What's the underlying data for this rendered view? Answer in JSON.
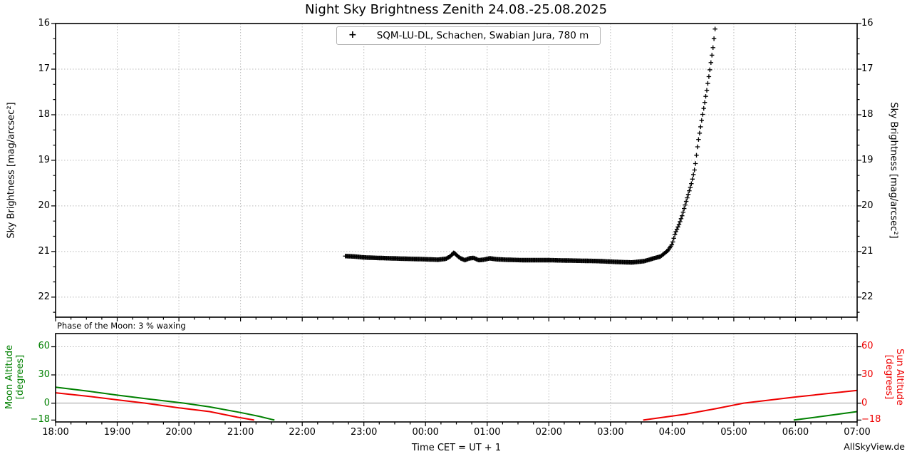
{
  "page": {
    "title": "Night Sky Brightness Zenith 24.08.-25.08.2025",
    "watermark": "AllSkyView.de"
  },
  "colors": {
    "marker": "#000000",
    "moon_green": "#008000",
    "sun_red": "#ee0000",
    "grid_dotted": "#bbbbbb",
    "zero_line": "#c8c8c8",
    "legend_border": "#b4b4b4",
    "axis_box": "#000000"
  },
  "chart_data": [
    {
      "type": "scatter",
      "title": "Night Sky Brightness Zenith 24.08.-25.08.2025",
      "legend": [
        {
          "marker": "+",
          "label": "SQM-LU-DL, Schachen, Swabian Jura, 780 m",
          "color": "#000000"
        }
      ],
      "xlabel": "Time CET = UT + 1",
      "ylabel_left": "Sky Brightness [mag/arcsec²]",
      "ylabel_right": "Sky Brightness [mag/arcsec²]",
      "y_axis_inverted": true,
      "ylim": [
        16,
        22.44
      ],
      "y_tick_values": [
        16,
        17,
        18,
        19,
        20,
        21,
        22
      ],
      "y_tick_labels": [
        "16",
        "17",
        "18",
        "19",
        "20",
        "21",
        "22"
      ],
      "y_minor_step": 0.3333,
      "xlim_hours": [
        0,
        13
      ],
      "x_axis_start_clock": "18:00",
      "x_tick_hours": [
        0,
        1,
        2,
        3,
        4,
        5,
        6,
        7,
        8,
        9,
        10,
        11,
        12,
        13
      ],
      "x_tick_labels": [
        "18:00",
        "19:00",
        "20:00",
        "21:00",
        "22:00",
        "23:00",
        "00:00",
        "01:00",
        "02:00",
        "03:00",
        "04:00",
        "05:00",
        "06:00",
        "07:00"
      ],
      "x_minor_step_hours": 0.25,
      "grid": "dotted",
      "series": [
        {
          "name": "SQM-LU-DL, Schachen, Swabian Jura, 780 m",
          "marker": "+",
          "color": "#000000",
          "sample_step_hours": 0.0167,
          "keypoints_hours_after_1800_vs_mag": [
            [
              4.7,
              21.1
            ],
            [
              4.85,
              21.11
            ],
            [
              5.0,
              21.13
            ],
            [
              5.2,
              21.14
            ],
            [
              5.45,
              21.15
            ],
            [
              5.7,
              21.16
            ],
            [
              6.0,
              21.17
            ],
            [
              6.2,
              21.18
            ],
            [
              6.33,
              21.16
            ],
            [
              6.41,
              21.1
            ],
            [
              6.46,
              21.02
            ],
            [
              6.51,
              21.09
            ],
            [
              6.57,
              21.15
            ],
            [
              6.64,
              21.19
            ],
            [
              6.71,
              21.15
            ],
            [
              6.78,
              21.14
            ],
            [
              6.86,
              21.19
            ],
            [
              6.94,
              21.18
            ],
            [
              7.04,
              21.15
            ],
            [
              7.15,
              21.17
            ],
            [
              7.3,
              21.18
            ],
            [
              7.6,
              21.19
            ],
            [
              8.0,
              21.19
            ],
            [
              8.4,
              21.2
            ],
            [
              8.8,
              21.21
            ],
            [
              9.12,
              21.23
            ],
            [
              9.35,
              21.24
            ],
            [
              9.55,
              21.21
            ],
            [
              9.7,
              21.15
            ],
            [
              9.81,
              21.11
            ],
            [
              9.93,
              20.98
            ],
            [
              10.0,
              20.84
            ],
            [
              10.05,
              20.6
            ],
            [
              10.11,
              20.41
            ],
            [
              10.16,
              20.22
            ],
            [
              10.23,
              19.89
            ],
            [
              10.31,
              19.52
            ],
            [
              10.37,
              19.16
            ],
            [
              10.42,
              18.61
            ],
            [
              10.48,
              18.11
            ],
            [
              10.56,
              17.48
            ],
            [
              10.62,
              16.94
            ],
            [
              10.66,
              16.55
            ],
            [
              10.69,
              16.2
            ],
            [
              10.71,
              15.9
            ]
          ]
        }
      ]
    },
    {
      "type": "line",
      "annotation": "Phase of the Moon: 3 % waxing",
      "ylabel_left_lines": [
        "Moon Altitude",
        "[degrees]"
      ],
      "ylabel_right_lines": [
        "Sun Altitude",
        "[degrees]"
      ],
      "ylim": [
        -20,
        74
      ],
      "y_tick_values": [
        60,
        30,
        0,
        -18
      ],
      "y_tick_labels": [
        "60",
        "30",
        "0",
        "−18"
      ],
      "xlim_hours": [
        0,
        13
      ],
      "x_minor_step_hours": 0.25,
      "zero_line_value": 0,
      "series": [
        {
          "name": "Moon Altitude",
          "color": "#008000",
          "segments_hours_after_1800_vs_deg": [
            [
              [
                0,
                17
              ],
              [
                0.5,
                13
              ],
              [
                1.0,
                8.5
              ],
              [
                1.5,
                4.5
              ],
              [
                2.08,
                0
              ],
              [
                2.5,
                -4
              ],
              [
                3.0,
                -10
              ],
              [
                3.3,
                -14
              ],
              [
                3.55,
                -18
              ]
            ],
            [
              [
                11.97,
                -18
              ],
              [
                12.5,
                -13.5
              ],
              [
                13,
                -9
              ]
            ]
          ]
        },
        {
          "name": "Sun Altitude",
          "color": "#ee0000",
          "segments_hours_after_1800_vs_deg": [
            [
              [
                0,
                11
              ],
              [
                0.5,
                7.5
              ],
              [
                1.0,
                3.5
              ],
              [
                1.45,
                0
              ],
              [
                2.0,
                -5
              ],
              [
                2.5,
                -9
              ],
              [
                2.95,
                -15
              ],
              [
                3.22,
                -18
              ]
            ],
            [
              [
                9.53,
                -18
              ],
              [
                10.2,
                -12
              ],
              [
                10.7,
                -6
              ],
              [
                11.16,
                0
              ],
              [
                12,
                6.5
              ],
              [
                13,
                13.5
              ]
            ]
          ]
        }
      ]
    }
  ]
}
